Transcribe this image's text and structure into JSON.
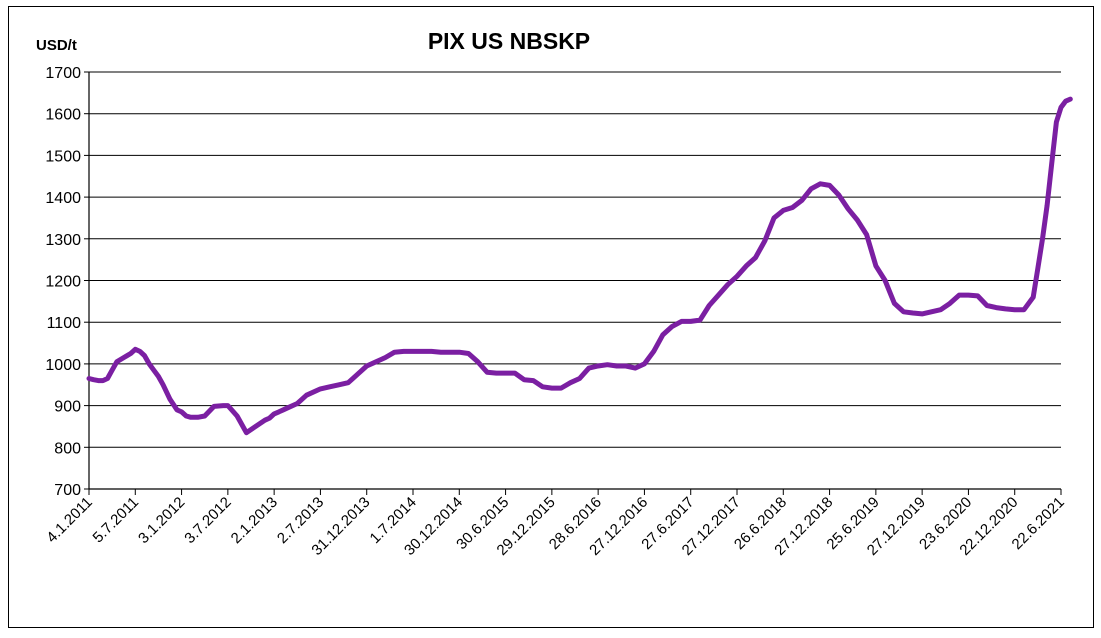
{
  "chart_data": {
    "type": "line",
    "title": "PIX US NBSKP",
    "ylabel": "USD/t",
    "ylim": [
      700,
      1700
    ],
    "yticks": [
      700,
      800,
      900,
      1000,
      1100,
      1200,
      1300,
      1400,
      1500,
      1600,
      1700
    ],
    "grid": "horizontal",
    "legend": "none",
    "line_color": "#7B1FA2",
    "x_tick_labels": [
      "4.1.2011",
      "5.7.2011",
      "3.1.2012",
      "3.7.2012",
      "2.1.2013",
      "2.7.2013",
      "31.12.2013",
      "1.7.2014",
      "30.12.2014",
      "30.6.2015",
      "29.12.2015",
      "28.6.2016",
      "27.12.2016",
      "27.6.2017",
      "27.12.2017",
      "26.6.2018",
      "27.12.2018",
      "25.6.2019",
      "27.12.2019",
      "23.6.2020",
      "22.12.2020",
      "22.6.2021"
    ],
    "series": [
      {
        "x": [
          0,
          0.1,
          0.2,
          0.3,
          0.4,
          0.5,
          0.6,
          0.75,
          0.9,
          1.0,
          1.1,
          1.2,
          1.3,
          1.4,
          1.5,
          1.6,
          1.75,
          1.9,
          2.0,
          2.1,
          2.2,
          2.35,
          2.5,
          2.7,
          2.9,
          3.0,
          3.2,
          3.4,
          3.6,
          3.8,
          3.9,
          4.0,
          4.1,
          4.2,
          4.3,
          4.5,
          4.7,
          5.0,
          5.2,
          5.4,
          5.6,
          5.8,
          6.0,
          6.2,
          6.4,
          6.6,
          6.8,
          7.0,
          7.2,
          7.4,
          7.6,
          7.8,
          8.0,
          8.2,
          8.4,
          8.6,
          8.8,
          9.0,
          9.2,
          9.4,
          9.6,
          9.8,
          10.0,
          10.2,
          10.4,
          10.6,
          10.8,
          11.0,
          11.2,
          11.4,
          11.6,
          11.8,
          12.0,
          12.2,
          12.4,
          12.6,
          12.8,
          13.0,
          13.2,
          13.4,
          13.6,
          13.8,
          14.0,
          14.2,
          14.4,
          14.6,
          14.8,
          15.0,
          15.2,
          15.4,
          15.6,
          15.8,
          16.0,
          16.2,
          16.4,
          16.6,
          16.8,
          17.0,
          17.2,
          17.4,
          17.6,
          17.8,
          18.0,
          18.2,
          18.4,
          18.6,
          18.8,
          19.0,
          19.2,
          19.4,
          19.6,
          19.8,
          20.0,
          20.2,
          20.4,
          20.5,
          20.6,
          20.7,
          20.8,
          20.9,
          21.0,
          21.1,
          21.2
        ],
        "values": [
          965,
          962,
          960,
          960,
          965,
          985,
          1005,
          1015,
          1025,
          1035,
          1030,
          1020,
          1000,
          985,
          970,
          950,
          915,
          890,
          885,
          875,
          872,
          872,
          875,
          898,
          900,
          900,
          875,
          835,
          850,
          865,
          870,
          880,
          885,
          890,
          895,
          905,
          925,
          940,
          945,
          950,
          955,
          975,
          995,
          1005,
          1015,
          1028,
          1030,
          1030,
          1030,
          1030,
          1028,
          1028,
          1028,
          1025,
          1005,
          980,
          978,
          978,
          978,
          962,
          960,
          945,
          942,
          942,
          955,
          965,
          990,
          995,
          998,
          995,
          995,
          990,
          1000,
          1030,
          1070,
          1090,
          1102,
          1102,
          1105,
          1140,
          1165,
          1190,
          1210,
          1235,
          1255,
          1295,
          1350,
          1368,
          1375,
          1392,
          1420,
          1432,
          1428,
          1405,
          1372,
          1345,
          1310,
          1235,
          1200,
          1145,
          1125,
          1122,
          1120,
          1125,
          1130,
          1145,
          1165,
          1165,
          1163,
          1140,
          1135,
          1132,
          1130,
          1130,
          1160,
          1230,
          1300,
          1380,
          1480,
          1580,
          1615,
          1630,
          1635
        ]
      }
    ]
  }
}
